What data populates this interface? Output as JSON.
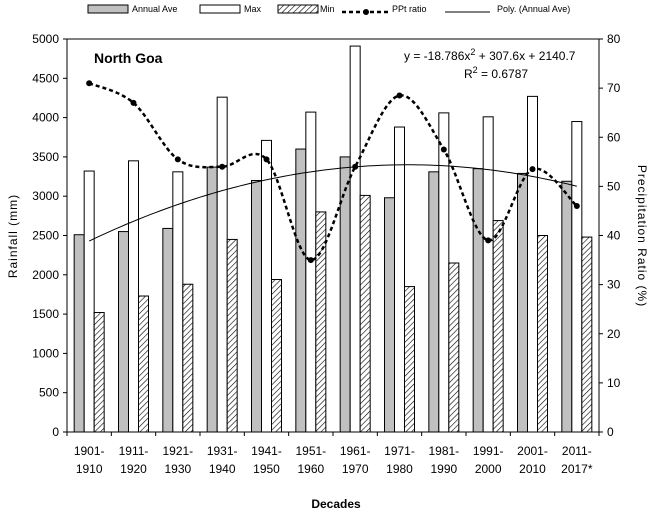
{
  "chart_data": {
    "type": "bar",
    "categories": [
      "1901-1910",
      "1911-1920",
      "1921-1930",
      "1931-1940",
      "1941-1950",
      "1951-1960",
      "1961-1970",
      "1971-1980",
      "1981-1990",
      "1991-2000",
      "2001-2010",
      "2011-2017*"
    ],
    "category_lines": [
      [
        "1901-",
        "1910"
      ],
      [
        "1911-",
        "1920"
      ],
      [
        "1921-",
        "1930"
      ],
      [
        "1931-",
        "1940"
      ],
      [
        "1941-",
        "1950"
      ],
      [
        "1951-",
        "1960"
      ],
      [
        "1961-",
        "1970"
      ],
      [
        "1971-",
        "1980"
      ],
      [
        "1981-",
        "1990"
      ],
      [
        "1991-",
        "2000"
      ],
      [
        "2001-",
        "2010"
      ],
      [
        "2011-",
        "2017*"
      ]
    ],
    "series": [
      {
        "name": "Annual  Ave",
        "kind": "bar",
        "axis": "left",
        "color": "#c0c0c0",
        "values": [
          2510,
          2550,
          2590,
          3370,
          3200,
          3600,
          3500,
          2980,
          3310,
          3350,
          3290,
          3190
        ]
      },
      {
        "name": "Max",
        "kind": "bar",
        "axis": "left",
        "color": "#ffffff",
        "values": [
          3320,
          3450,
          3310,
          4260,
          3710,
          4070,
          4910,
          3880,
          4060,
          4010,
          4270,
          3950
        ]
      },
      {
        "name": "Min",
        "kind": "bar",
        "axis": "left",
        "pattern": "hatch",
        "values": [
          1520,
          1730,
          1880,
          2450,
          1940,
          2800,
          3010,
          1850,
          2150,
          2690,
          2500,
          2480
        ]
      },
      {
        "name": "PPt ratio",
        "kind": "dotted-line",
        "axis": "right",
        "color": "#000000",
        "values": [
          71,
          67,
          55.5,
          54,
          55.5,
          35,
          54,
          68.5,
          57.5,
          39,
          53.5,
          46
        ]
      },
      {
        "name": "Poly. (Annual  Ave)",
        "kind": "trendline",
        "axis": "left",
        "equation_coeffs": {
          "a": -18.786,
          "b": 307.6,
          "c": 2140.7
        }
      }
    ],
    "xlabel": "Decades",
    "ylabel": "Rainfall  (mm)",
    "y2label": "Precipitation  Ratio  (%)",
    "ylim": [
      0,
      5000
    ],
    "y2lim": [
      0,
      80
    ],
    "yticks": [
      "0",
      "500",
      "1000",
      "1500",
      "2000",
      "2500",
      "3000",
      "3500",
      "4000",
      "4500",
      "5000"
    ],
    "y2ticks": [
      "0",
      "10",
      "20",
      "30",
      "40",
      "50",
      "60",
      "70",
      "80"
    ],
    "legend_position": "top",
    "grid": false
  },
  "annotations": {
    "place": "North Goa",
    "equation_prefix": "y = -18.786x",
    "equation_sup": "2",
    "equation_suffix": " + 307.6x + 2140.7",
    "r2_prefix": "R",
    "r2_sup": "2",
    "r2_suffix": " = 0.6787"
  }
}
